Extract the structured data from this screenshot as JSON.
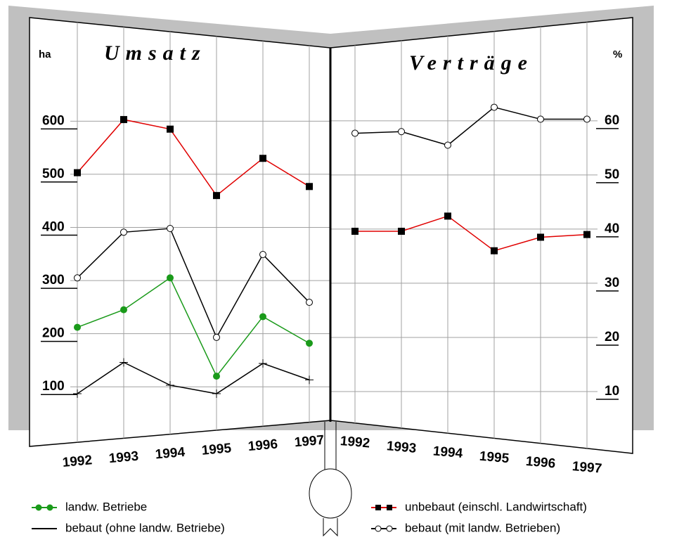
{
  "chart_data": [
    {
      "type": "line",
      "title": "Umsatz",
      "y_label": "ha",
      "categories": [
        "1992",
        "1993",
        "1994",
        "1995",
        "1996",
        "1997"
      ],
      "ylim": [
        50,
        750
      ],
      "yticks": [
        100,
        200,
        300,
        400,
        500,
        600
      ],
      "grid": true,
      "series": [
        {
          "name": "landw. Betriebe",
          "color": "#1a9a1a",
          "marker": "filled-circle",
          "values": [
            212,
            245,
            305,
            120,
            232,
            182
          ]
        },
        {
          "name": "bebaut (ohne landw. Betriebe)",
          "color": "#000000",
          "marker": "none",
          "values": [
            87,
            146,
            103,
            87,
            144,
            113
          ]
        },
        {
          "name": "unbebaut (einschl. Landwirtschaft)",
          "color": "#e00000",
          "marker": "square",
          "values": [
            503,
            603,
            585,
            460,
            530,
            477
          ]
        },
        {
          "name": "bebaut (mit landw. Betrieben)",
          "color": "#000000",
          "marker": "open-circle",
          "values": [
            305,
            391,
            398,
            193,
            349,
            259
          ]
        }
      ]
    },
    {
      "type": "line",
      "title": "Verträge",
      "y_label": "%",
      "categories": [
        "1992",
        "1993",
        "1994",
        "1995",
        "1996",
        "1997"
      ],
      "ylim": [
        5,
        74
      ],
      "yticks": [
        10,
        20,
        30,
        40,
        50,
        60
      ],
      "grid": true,
      "series": [
        {
          "name": "unbebaut (einschl. Landwirtschaft)",
          "color": "#e00000",
          "marker": "square",
          "values": [
            39.6,
            39.6,
            42.4,
            36,
            38.5,
            39
          ]
        },
        {
          "name": "bebaut (mit landw. Betrieben)",
          "color": "#000000",
          "marker": "open-circle",
          "values": [
            57.7,
            58,
            55.5,
            62.5,
            60.3,
            60.3
          ]
        }
      ]
    }
  ]
}
